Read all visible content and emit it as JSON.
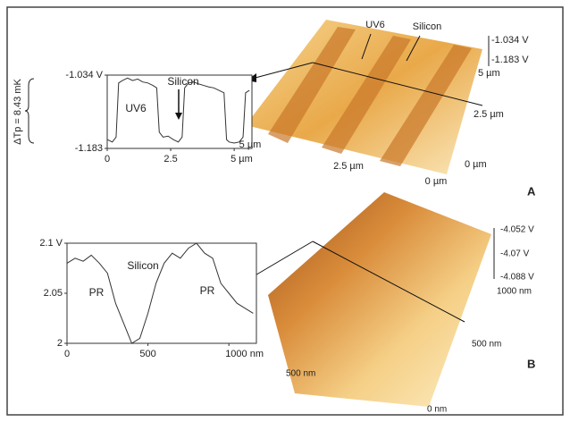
{
  "chart_data": [
    {
      "type": "line",
      "ylabel": "ΔTp = 8.43 mK",
      "x": [
        0,
        0.2,
        0.35,
        0.45,
        0.6,
        0.8,
        1,
        1.2,
        1.4,
        1.6,
        1.8,
        1.95,
        2.05,
        2.2,
        2.4,
        2.6,
        2.8,
        2.95,
        3.05,
        3.2,
        3.4,
        3.6,
        3.8,
        4,
        4.2,
        4.4,
        4.6,
        4.7,
        4.8,
        5,
        5.2,
        5.35,
        5.45,
        5.6
      ],
      "values": [
        -1.165,
        -1.17,
        -1.16,
        -1.05,
        -1.045,
        -1.04,
        -1.045,
        -1.042,
        -1.048,
        -1.05,
        -1.055,
        -1.06,
        -1.15,
        -1.16,
        -1.158,
        -1.165,
        -1.17,
        -1.16,
        -1.06,
        -1.05,
        -1.048,
        -1.052,
        -1.055,
        -1.058,
        -1.06,
        -1.065,
        -1.07,
        -1.165,
        -1.17,
        -1.172,
        -1.17,
        -1.16,
        -1.07,
        -1.065
      ],
      "color": "#333333",
      "xlim": [
        0,
        5.7
      ],
      "ylim": [
        -1.183,
        -1.034
      ],
      "xticks": [
        0,
        2.5,
        {
          "value": 5,
          "label": "5 µm"
        }
      ],
      "yticks": [
        {
          "value": -1.034,
          "label": "-1.034 V"
        },
        {
          "value": -1.183,
          "label": "-1.183"
        }
      ],
      "annotations": [
        "UV6",
        "Silicon"
      ]
    },
    {
      "type": "line",
      "x": [
        0,
        50,
        100,
        150,
        200,
        250,
        300,
        350,
        400,
        450,
        500,
        550,
        600,
        650,
        700,
        750,
        800,
        850,
        900,
        950,
        1000,
        1050,
        1100,
        1150
      ],
      "values": [
        2.08,
        2.085,
        2.082,
        2.088,
        2.08,
        2.07,
        2.04,
        2.02,
        2.0,
        2.005,
        2.03,
        2.06,
        2.08,
        2.09,
        2.085,
        2.095,
        2.1,
        2.09,
        2.085,
        2.06,
        2.05,
        2.04,
        2.035,
        2.03
      ],
      "color": "#333333",
      "xlim": [
        0,
        1170
      ],
      "ylim": [
        2,
        2.1
      ],
      "xticks": [
        0,
        500,
        {
          "value": 1000,
          "label": "1000 nm"
        }
      ],
      "yticks": [
        {
          "value": 2.1,
          "label": "2.1 V"
        },
        2.05,
        2
      ],
      "annotations": [
        "Silicon",
        "PR",
        "PR"
      ]
    }
  ],
  "figure": {
    "panel_a": {
      "label": "A",
      "texts": [
        "UV6",
        "Silicon",
        "-1.034 V",
        "-1.183 V",
        "5 µm",
        "2.5 µm",
        "0 µm",
        "5 µm",
        "2.5 µm",
        "0 µm"
      ]
    },
    "panel_b": {
      "label": "B",
      "texts": [
        "-4.052 V",
        "-4.07 V",
        "-4.088 V",
        "1000 nm",
        "500 nm",
        "0 nm",
        "500 nm"
      ]
    }
  }
}
